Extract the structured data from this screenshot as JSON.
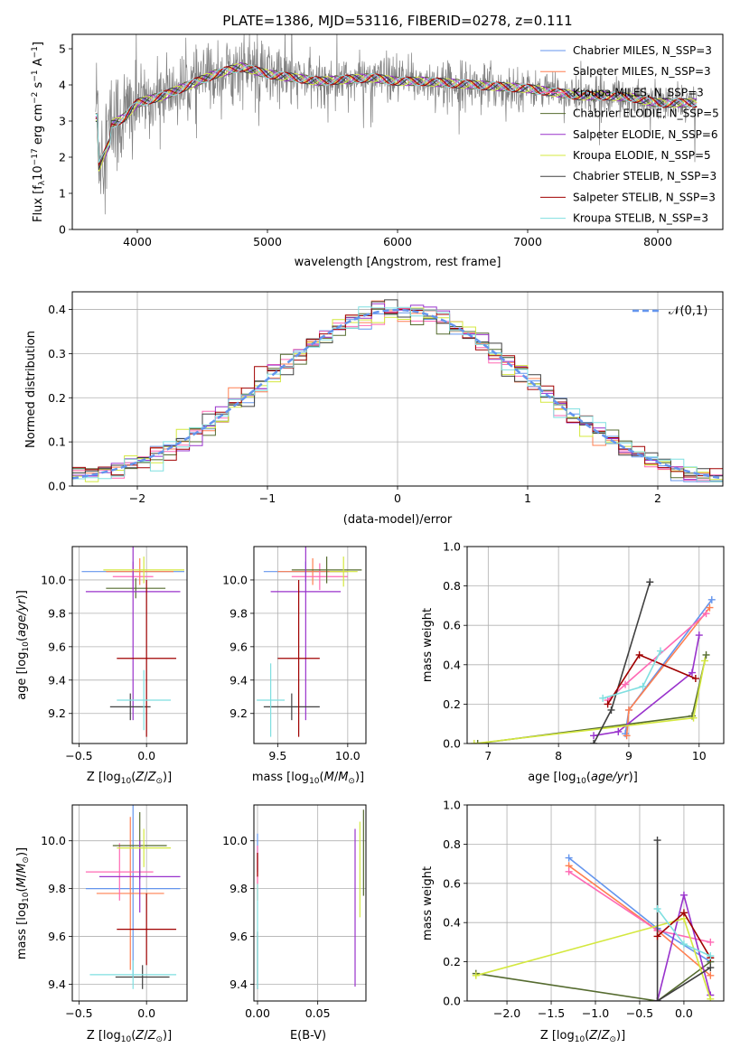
{
  "colors": [
    "#6495ed",
    "#ff7f50",
    "#ff69b4",
    "#556b2f",
    "#9932cc",
    "#d4e83f",
    "#404040",
    "#a00000",
    "#7fdfe0"
  ],
  "chart_data": [
    {
      "id": "spectrum",
      "type": "line",
      "title": "PLATE=1386, MJD=53116, FIBERID=0278, z=0.111",
      "xlabel": "wavelength [Angstrom, rest frame]",
      "ylabel": "Flux [f_λ 10^-17 erg cm^-2 s^-1 A^-1]",
      "xlim": [
        3500,
        8500
      ],
      "ylim": [
        0,
        5.4
      ],
      "xticks": [
        4000,
        5000,
        6000,
        7000,
        8000
      ],
      "yticks": [
        0,
        1,
        2,
        3,
        4,
        5
      ],
      "grid": false,
      "legend_position": "upper-right",
      "series": [
        {
          "name": "Chabrier MILES, N_SSP=3"
        },
        {
          "name": "Salpeter MILES, N_SSP=3"
        },
        {
          "name": "Kroupa MILES, N_SSP=3"
        },
        {
          "name": "Chabrier ELODIE, N_SSP=5"
        },
        {
          "name": "Salpeter ELODIE, N_SSP=6"
        },
        {
          "name": "Kroupa ELODIE, N_SSP=5"
        },
        {
          "name": "Chabrier STELIB, N_SSP=3"
        },
        {
          "name": "Salpeter STELIB, N_SSP=3"
        },
        {
          "name": "Kroupa STELIB, N_SSP=3"
        }
      ],
      "continuum": {
        "x": [
          3700,
          3800,
          3900,
          4000,
          4100,
          4200,
          4300,
          4400,
          4500,
          4600,
          4700,
          4800,
          5000,
          5200,
          5400,
          5600,
          5800,
          6000,
          6200,
          6400,
          6600,
          6800,
          7000,
          7200,
          7400,
          7600,
          7800,
          8000,
          8200
        ],
        "y": [
          2.1,
          2.9,
          3.1,
          3.5,
          3.6,
          3.7,
          3.85,
          4.0,
          4.15,
          4.3,
          4.4,
          4.5,
          4.3,
          4.2,
          4.1,
          4.15,
          4.2,
          4.1,
          4.1,
          4.05,
          4.0,
          3.95,
          3.9,
          3.8,
          3.7,
          3.7,
          3.65,
          3.5,
          3.5
        ]
      }
    },
    {
      "id": "residuals",
      "type": "line",
      "xlabel": "(data-model)/error",
      "ylabel": "Normed distribution",
      "xlim": [
        -2.5,
        2.5
      ],
      "ylim": [
        0,
        0.44
      ],
      "xticks": [
        -2,
        -1,
        0,
        1,
        2
      ],
      "yticks": [
        0.0,
        0.1,
        0.2,
        0.3,
        0.4
      ],
      "grid": true,
      "legend_position": "upper-right",
      "reference": {
        "name": "𝒩(0,1)",
        "mean": 0,
        "sigma": 1
      }
    },
    {
      "id": "age-vs-Z",
      "type": "scatter",
      "xlabel": "Z [log10(Z/Z⊙)]",
      "ylabel": "age  [log10(age/yr)]",
      "xlim": [
        -0.55,
        0.3
      ],
      "ylim": [
        9.02,
        10.2
      ],
      "xticks": [
        -0.5,
        0.0
      ],
      "yticks": [
        9.2,
        9.4,
        9.6,
        9.8,
        10.0
      ],
      "grid": true,
      "points": [
        {
          "x": -0.1,
          "y": 10.05,
          "xerr": 0.38,
          "yerr": 0.06
        },
        {
          "x": -0.05,
          "y": 10.05,
          "xerr": 0.25,
          "yerr": 0.08
        },
        {
          "x": -0.1,
          "y": 10.02,
          "xerr": 0.15,
          "yerr": 0.08
        },
        {
          "x": -0.08,
          "y": 9.95,
          "xerr": 0.22,
          "yerr": 0.06
        },
        {
          "x": -0.1,
          "y": 9.93,
          "xerr": 0.35,
          "yerr": 0.77
        },
        {
          "x": -0.02,
          "y": 10.06,
          "xerr": 0.3,
          "yerr": 0.08
        },
        {
          "x": -0.12,
          "y": 9.24,
          "xerr": 0.15,
          "yerr": 0.08
        },
        {
          "x": 0.0,
          "y": 9.53,
          "xerr": 0.22,
          "yerr": 0.47
        },
        {
          "x": -0.02,
          "y": 9.28,
          "xerr": 0.2,
          "yerr": 0.18
        }
      ]
    },
    {
      "id": "age-vs-mass",
      "type": "scatter",
      "xlabel": "mass [log10(M/M⊙)]",
      "ylabel": "",
      "xlim": [
        9.33,
        10.13
      ],
      "ylim": [
        9.02,
        10.2
      ],
      "xticks": [
        9.5,
        10.0
      ],
      "yticks": [
        9.2,
        9.4,
        9.6,
        9.8,
        10.0
      ],
      "grid": true,
      "points": [
        {
          "x": 9.7,
          "y": 10.05,
          "xerr": 0.3,
          "yerr": 0.06
        },
        {
          "x": 9.75,
          "y": 10.05,
          "xerr": 0.25,
          "yerr": 0.08
        },
        {
          "x": 9.8,
          "y": 10.02,
          "xerr": 0.2,
          "yerr": 0.08
        },
        {
          "x": 9.85,
          "y": 10.06,
          "xerr": 0.25,
          "yerr": 0.08
        },
        {
          "x": 9.7,
          "y": 9.93,
          "xerr": 0.25,
          "yerr": 0.77
        },
        {
          "x": 9.97,
          "y": 10.05,
          "xerr": 0.1,
          "yerr": 0.09
        },
        {
          "x": 9.6,
          "y": 9.24,
          "xerr": 0.2,
          "yerr": 0.08
        },
        {
          "x": 9.65,
          "y": 9.53,
          "xerr": 0.15,
          "yerr": 0.47
        },
        {
          "x": 9.45,
          "y": 9.28,
          "xerr": 0.1,
          "yerr": 0.22
        }
      ]
    },
    {
      "id": "weight-vs-age",
      "type": "line",
      "xlabel": "age  [log10(age/yr)]",
      "ylabel": "mass weight",
      "xlim": [
        6.7,
        10.35
      ],
      "ylim": [
        0,
        1.0
      ],
      "xticks": [
        7,
        8,
        9,
        10
      ],
      "yticks": [
        0.0,
        0.2,
        0.4,
        0.6,
        0.8,
        1.0
      ],
      "grid": true,
      "series": [
        {
          "x": [
            8.95,
            9.0,
            10.18
          ],
          "y": [
            0.05,
            0.17,
            0.73
          ]
        },
        {
          "x": [
            8.97,
            9.0,
            10.15
          ],
          "y": [
            0.04,
            0.17,
            0.69
          ]
        },
        {
          "x": [
            8.7,
            8.95,
            10.1
          ],
          "y": [
            0.22,
            0.3,
            0.66
          ]
        },
        {
          "x": [
            6.85,
            9.9,
            10.1
          ],
          "y": [
            0.0,
            0.14,
            0.45
          ]
        },
        {
          "x": [
            8.5,
            8.85,
            9.9,
            10.0
          ],
          "y": [
            0.04,
            0.06,
            0.36,
            0.55
          ]
        },
        {
          "x": [
            6.8,
            9.92,
            10.08
          ],
          "y": [
            0.0,
            0.13,
            0.42
          ]
        },
        {
          "x": [
            8.5,
            8.75,
            9.3
          ],
          "y": [
            0.0,
            0.17,
            0.82
          ]
        },
        {
          "x": [
            8.7,
            9.15,
            9.95
          ],
          "y": [
            0.2,
            0.45,
            0.33
          ]
        },
        {
          "x": [
            8.63,
            9.2,
            9.45
          ],
          "y": [
            0.23,
            0.29,
            0.47
          ]
        }
      ]
    },
    {
      "id": "mass-vs-Z",
      "type": "scatter",
      "xlabel": "Z [log10(Z/Z⊙)]",
      "ylabel": "mass [log10(M/M⊙)]",
      "xlim": [
        -0.55,
        0.3
      ],
      "ylim": [
        9.33,
        10.15
      ],
      "xticks": [
        -0.5,
        0.0
      ],
      "yticks": [
        9.4,
        9.6,
        9.8,
        10.0
      ],
      "grid": true,
      "points": [
        {
          "x": -0.1,
          "y": 9.8,
          "xerr": 0.35,
          "yerr": 0.37
        },
        {
          "x": -0.12,
          "y": 9.78,
          "xerr": 0.25,
          "yerr": 0.32
        },
        {
          "x": -0.2,
          "y": 9.87,
          "xerr": 0.25,
          "yerr": 0.12
        },
        {
          "x": -0.05,
          "y": 9.98,
          "xerr": 0.2,
          "yerr": 0.14
        },
        {
          "x": -0.05,
          "y": 9.85,
          "xerr": 0.3,
          "yerr": 0.15
        },
        {
          "x": -0.02,
          "y": 9.97,
          "xerr": 0.2,
          "yerr": 0.08
        },
        {
          "x": -0.03,
          "y": 9.43,
          "xerr": 0.2,
          "yerr": 0.05
        },
        {
          "x": 0.0,
          "y": 9.63,
          "xerr": 0.22,
          "yerr": 0.15
        },
        {
          "x": -0.1,
          "y": 9.44,
          "xerr": 0.32,
          "yerr": 0.06
        }
      ]
    },
    {
      "id": "mass-vs-EBV",
      "type": "scatter",
      "xlabel": "E(B-V)",
      "ylabel": "",
      "xlim": [
        -0.003,
        0.09
      ],
      "ylim": [
        9.33,
        10.15
      ],
      "xticks": [
        0.0,
        0.05
      ],
      "yticks": [
        9.4,
        9.6,
        9.8,
        10.0
      ],
      "grid": true,
      "points": [
        {
          "x": 0.0,
          "y": 9.95,
          "xerr": 0.0,
          "yerr": 0.08
        },
        {
          "x": 0.0,
          "y": 9.85,
          "xerr": 0.0,
          "yerr": 0.1
        },
        {
          "x": 0.0,
          "y": 9.9,
          "xerr": 0.0,
          "yerr": 0.08
        },
        {
          "x": 0.088,
          "y": 9.95,
          "xerr": 0.0,
          "yerr": 0.18
        },
        {
          "x": 0.081,
          "y": 9.72,
          "xerr": 0.0,
          "yerr": 0.33
        },
        {
          "x": 0.085,
          "y": 9.88,
          "xerr": 0.0,
          "yerr": 0.2
        },
        {
          "x": 0.0,
          "y": 9.5,
          "xerr": 0.0,
          "yerr": 0.12
        },
        {
          "x": 0.0,
          "y": 9.9,
          "xerr": 0.0,
          "yerr": 0.05
        },
        {
          "x": 0.0,
          "y": 9.6,
          "xerr": 0.0,
          "yerr": 0.22
        }
      ]
    },
    {
      "id": "weight-vs-Z",
      "type": "line",
      "xlabel": "Z [log10(Z/Z⊙)]",
      "ylabel": "mass weight",
      "xlim": [
        -2.45,
        0.45
      ],
      "ylim": [
        0,
        1.0
      ],
      "xticks": [
        -2.0,
        -1.5,
        -1.0,
        -0.5,
        0.0
      ],
      "yticks": [
        0.0,
        0.2,
        0.4,
        0.6,
        0.8,
        1.0
      ],
      "grid": true,
      "series": [
        {
          "x": [
            -1.3,
            -0.3,
            0.3
          ],
          "y": [
            0.73,
            0.37,
            0.2
          ]
        },
        {
          "x": [
            -1.3,
            -0.3,
            0.3
          ],
          "y": [
            0.69,
            0.36,
            0.13
          ]
        },
        {
          "x": [
            -1.3,
            -0.3,
            0.3
          ],
          "y": [
            0.66,
            0.36,
            0.3
          ]
        },
        {
          "x": [
            -2.35,
            -0.3,
            0.3
          ],
          "y": [
            0.14,
            0.0,
            0.2
          ]
        },
        {
          "x": [
            -0.3,
            0.0,
            0.3
          ],
          "y": [
            0.0,
            0.54,
            0.03
          ]
        },
        {
          "x": [
            -2.35,
            0.0,
            0.3
          ],
          "y": [
            0.13,
            0.42,
            0.01
          ]
        },
        {
          "x": [
            -0.3,
            -0.3,
            0.3
          ],
          "y": [
            0.82,
            0.0,
            0.17
          ]
        },
        {
          "x": [
            -0.3,
            0.0,
            0.3
          ],
          "y": [
            0.33,
            0.45,
            0.22
          ]
        },
        {
          "x": [
            -0.3,
            0.0,
            0.3
          ],
          "y": [
            0.47,
            0.29,
            0.23
          ]
        }
      ]
    }
  ]
}
